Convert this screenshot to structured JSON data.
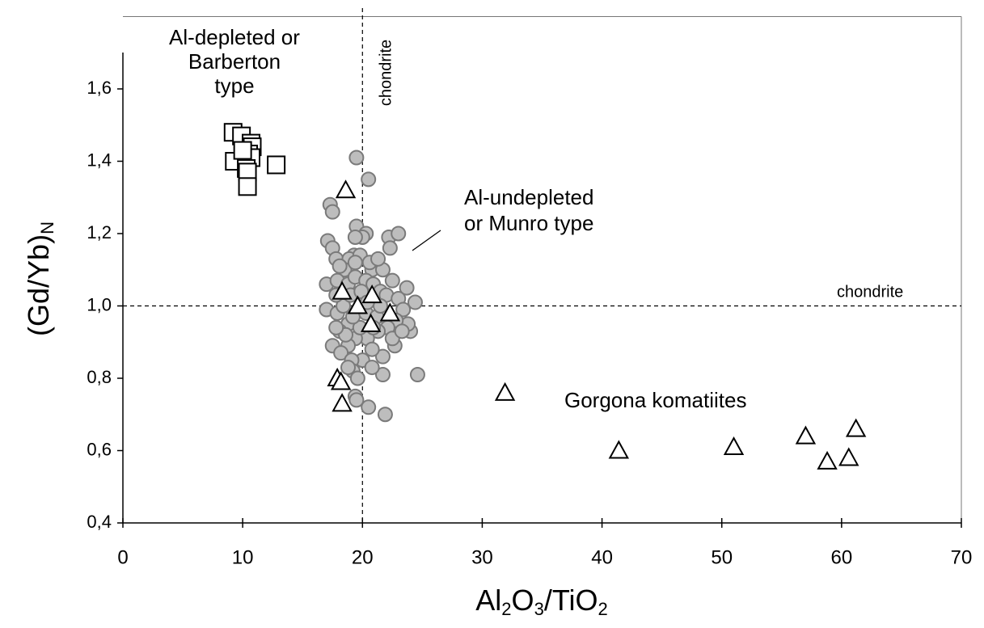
{
  "chart_data": {
    "type": "scatter",
    "xlabel_parts": [
      "Al",
      "2",
      "O",
      "3",
      "/TiO",
      "2"
    ],
    "ylabel_parts": [
      "(Gd/Yb)",
      "N"
    ],
    "xlim": [
      0,
      70
    ],
    "ylim": [
      0.4,
      1.8
    ],
    "xticks": [
      0,
      10,
      20,
      30,
      40,
      50,
      60,
      70
    ],
    "yticks": [
      {
        "value": 0.4,
        "label": "0,4"
      },
      {
        "value": 0.6,
        "label": "0,6"
      },
      {
        "value": 0.8,
        "label": "0,8"
      },
      {
        "value": 1.0,
        "label": "1,0"
      },
      {
        "value": 1.2,
        "label": "1,2"
      },
      {
        "value": 1.4,
        "label": "1,4"
      },
      {
        "value": 1.6,
        "label": "1,6"
      }
    ],
    "ref_lines": {
      "x": 20,
      "y": 1.0
    },
    "annotations": [
      {
        "lines": [
          "Al-depleted or",
          "Barberton",
          "type"
        ]
      },
      {
        "lines": [
          "chondrite"
        ]
      },
      {
        "lines": [
          "Al-undepleted",
          "or Munro type"
        ]
      },
      {
        "lines": [
          "chondrite"
        ]
      },
      {
        "lines": [
          "Gorgona komatiites"
        ]
      }
    ],
    "series": [
      {
        "marker": "circle",
        "color": "#bdbdbd",
        "stroke": "#7a7a7a",
        "x": [
          19.5,
          20.5,
          17.3,
          17.5,
          19.5,
          20.3,
          20.0,
          19.4,
          22.2,
          23.0,
          22.3,
          17.1,
          17.5,
          17.8,
          23.7,
          24.4,
          17.0,
          17.0,
          17.5,
          24.0,
          23.8,
          22.7,
          21.7,
          20.0,
          21.7,
          24.6,
          19.4,
          19.5,
          20.5,
          21.9,
          17.9,
          18.8,
          20.8,
          21.7,
          19.3,
          18.9,
          19.8,
          18.5,
          17.9,
          18.8,
          19.4,
          20.3,
          20.9,
          21.5,
          22.0,
          23.0,
          23.4,
          22.8,
          22.1,
          21.3,
          20.4,
          19.4,
          18.8,
          18.2,
          19.1,
          20.8,
          19.8,
          19.2,
          20.3,
          21.2,
          21.5,
          18.4,
          17.8,
          19.0,
          19.9,
          18.1,
          18.6,
          17.8,
          19.2,
          19.6,
          18.8,
          20.8,
          20.6,
          19.4,
          22.5,
          23.3,
          18.1,
          21.3,
          20.4,
          20.9,
          22.5
        ],
        "values": [
          1.41,
          1.35,
          1.28,
          1.26,
          1.22,
          1.2,
          1.19,
          1.19,
          1.19,
          1.2,
          1.16,
          1.18,
          1.16,
          1.13,
          1.05,
          1.01,
          1.06,
          0.99,
          0.89,
          0.93,
          0.95,
          0.89,
          0.86,
          0.85,
          0.81,
          0.81,
          0.75,
          0.74,
          0.72,
          0.7,
          0.98,
          0.95,
          1.1,
          1.1,
          1.14,
          1.13,
          1.14,
          1.1,
          1.07,
          1.06,
          1.08,
          1.07,
          1.06,
          1.04,
          1.03,
          1.02,
          0.99,
          0.96,
          0.94,
          0.93,
          0.91,
          0.91,
          0.89,
          0.87,
          0.85,
          0.88,
          0.94,
          0.97,
          0.98,
          0.97,
          1.0,
          1.0,
          1.03,
          1.03,
          1.04,
          0.93,
          0.92,
          0.94,
          0.82,
          0.8,
          0.83,
          0.83,
          1.12,
          1.12,
          0.91,
          0.93,
          1.11,
          1.13,
          1.01,
          0.94,
          1.07
        ]
      },
      {
        "marker": "square",
        "color": "#ffffff",
        "stroke": "#000000",
        "x": [
          9.2,
          9.9,
          10.7,
          10.8,
          10.5,
          9.3,
          10.7,
          10.3,
          10.4,
          10.4,
          12.8,
          10.0
        ],
        "values": [
          1.48,
          1.47,
          1.45,
          1.44,
          1.42,
          1.4,
          1.41,
          1.38,
          1.37,
          1.33,
          1.39,
          1.43
        ]
      },
      {
        "marker": "triangle",
        "color": "#ffffff",
        "stroke": "#000000",
        "x": [
          18.6,
          18.3,
          19.6,
          20.8,
          22.3,
          20.7,
          17.9,
          18.2,
          18.3,
          31.9,
          41.4,
          51.0,
          57.0,
          58.8,
          60.6,
          61.2
        ],
        "values": [
          1.32,
          1.04,
          1.0,
          1.03,
          0.98,
          0.95,
          0.8,
          0.79,
          0.73,
          0.76,
          0.6,
          0.61,
          0.64,
          0.57,
          0.58,
          0.66
        ]
      }
    ]
  }
}
